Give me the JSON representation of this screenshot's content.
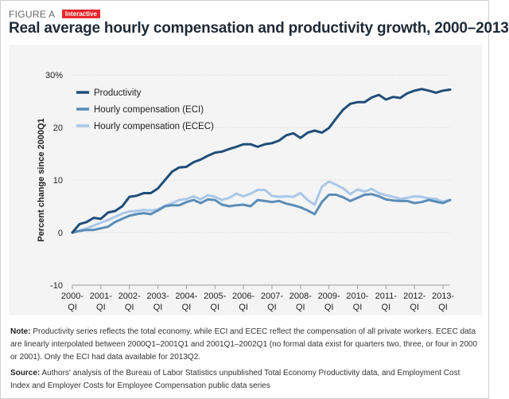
{
  "header": {
    "figure_label": "FIGURE A",
    "badge": "Interactive",
    "title": "Real average hourly compensation and productivity growth, 2000–2013"
  },
  "chart_data": {
    "type": "line",
    "title": "Real average hourly compensation and productivity growth, 2000–2013",
    "xlabel": "",
    "ylabel": "Percent change since 2000Q1",
    "ylim": [
      -10,
      30
    ],
    "y_ticks": [
      -10,
      0,
      10,
      20,
      30
    ],
    "y_tick_labels": [
      "-10",
      "0",
      "10",
      "20",
      "30%"
    ],
    "x_ticks": [
      {
        "l1": "2000-",
        "l2": "QI"
      },
      {
        "l1": "2001-",
        "l2": "QI"
      },
      {
        "l1": "2002-",
        "l2": "QI"
      },
      {
        "l1": "2003-",
        "l2": "QI"
      },
      {
        "l1": "2004-",
        "l2": "QI"
      },
      {
        "l1": "2005-",
        "l2": "QI"
      },
      {
        "l1": "2006-",
        "l2": "QI"
      },
      {
        "l1": "2007-",
        "l2": "QI"
      },
      {
        "l1": "2008-",
        "l2": "QI"
      },
      {
        "l1": "2009-",
        "l2": "QI"
      },
      {
        "l1": "2010-",
        "l2": "QI"
      },
      {
        "l1": "2011-",
        "l2": "QI"
      },
      {
        "l1": "2012-",
        "l2": "QI"
      },
      {
        "l1": "2013-",
        "l2": "QI"
      }
    ],
    "grid": "horizontal",
    "legend_position": "top-left",
    "series": [
      {
        "name": "Productivity",
        "color": "#1f4e79",
        "values": [
          0,
          1.6,
          2.0,
          2.8,
          2.6,
          3.8,
          4.1,
          5.0,
          6.8,
          7.0,
          7.5,
          7.5,
          8.4,
          10.0,
          11.6,
          12.4,
          12.5,
          13.4,
          13.9,
          14.6,
          15.2,
          15.4,
          15.9,
          16.3,
          16.8,
          16.8,
          16.3,
          16.8,
          17.0,
          17.5,
          18.5,
          18.9,
          18.0,
          19.0,
          19.4,
          19.0,
          19.9,
          21.7,
          23.4,
          24.5,
          24.8,
          24.8,
          25.7,
          26.2,
          25.3,
          25.8,
          25.6,
          26.5,
          27.0,
          27.3,
          27.0,
          26.6,
          27.0,
          27.2
        ]
      },
      {
        "name": "Hourly compensation (ECI)",
        "color": "#5b8db8",
        "values": [
          0,
          0.3,
          0.5,
          0.5,
          0.8,
          1.1,
          2.0,
          2.6,
          3.2,
          3.5,
          3.7,
          3.5,
          4.2,
          5.0,
          5.2,
          5.2,
          5.8,
          6.2,
          5.6,
          6.3,
          6.2,
          5.3,
          5.0,
          5.2,
          5.3,
          5.0,
          6.2,
          6.0,
          5.8,
          6.0,
          5.5,
          5.2,
          4.8,
          4.2,
          3.5,
          5.8,
          7.2,
          7.2,
          6.7,
          6.0,
          6.6,
          7.2,
          7.3,
          6.9,
          6.3,
          6.1,
          6.0,
          6.0,
          5.6,
          5.8,
          6.2,
          5.9,
          5.6,
          6.2
        ]
      },
      {
        "name": "Hourly compensation (ECEC)",
        "color": "#a9c8e8",
        "values": [
          0,
          0.4,
          0.8,
          1.3,
          1.9,
          2.4,
          3.0,
          3.6,
          4.0,
          4.1,
          4.3,
          4.2,
          4.4,
          5.1,
          5.6,
          6.2,
          6.4,
          6.9,
          6.3,
          7.1,
          6.8,
          6.2,
          6.6,
          7.4,
          6.9,
          7.4,
          8.1,
          8.1,
          7.0,
          6.8,
          6.9,
          6.8,
          7.5,
          6.2,
          5.3,
          8.7,
          9.7,
          9.1,
          8.4,
          7.3,
          8.2,
          7.8,
          8.3,
          7.5,
          7.1,
          6.8,
          6.4,
          6.6,
          6.9,
          6.8,
          6.5,
          6.4,
          5.9,
          6.2
        ]
      }
    ]
  },
  "notes": {
    "note_label": "Note:",
    "note_text": "Productivity series reflects the total economy, while ECI and ECEC reflect the compensation of all private workers. ECEC data are linearly interpolated between 2000Q1–2001Q1 and 2001Q1–2002Q1 (no formal data exist for quarters two, three, or four in 2000 or 2001). Only the ECI had data available for 2013Q2.",
    "source_label": "Source:",
    "source_text": "Authors' analysis of the Bureau of Labor Statistics unpublished Total Economy Productivity data, and Employment Cost Index and Employer Costs for Employee Compensation public data series"
  }
}
